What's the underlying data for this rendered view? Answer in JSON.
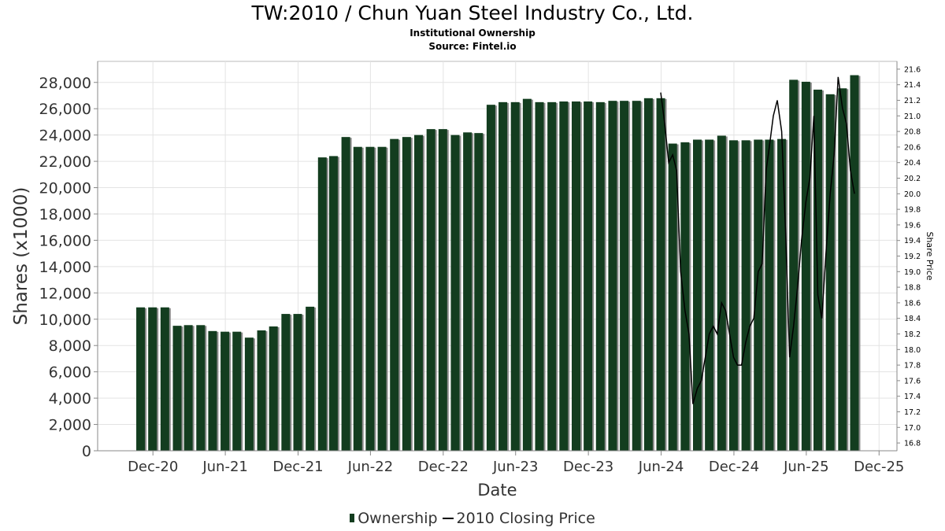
{
  "chart_data": {
    "type": "bar",
    "title": "TW:2010 / Chun Yuan Steel Industry Co., Ltd.",
    "subtitle": "Institutional Ownership",
    "source": "Source: Fintel.io",
    "xlabel": "Date",
    "ylabel": "Shares (x1000)",
    "y2label": "Share Price",
    "ylim": [
      0,
      29600
    ],
    "y2lim": [
      16.7,
      21.7
    ],
    "yticks": [
      "0",
      "2,000",
      "4,000",
      "6,000",
      "8,000",
      "10,000",
      "12,000",
      "14,000",
      "16,000",
      "18,000",
      "20,000",
      "22,000",
      "24,000",
      "26,000",
      "28,000"
    ],
    "y2ticks": [
      "16.8",
      "17.0",
      "17.2",
      "17.4",
      "17.6",
      "17.8",
      "18.0",
      "18.2",
      "18.4",
      "18.6",
      "18.8",
      "19.0",
      "19.2",
      "19.4",
      "19.6",
      "19.8",
      "20.0",
      "20.2",
      "20.4",
      "20.6",
      "20.8",
      "21.0",
      "21.2",
      "21.4",
      "21.6"
    ],
    "xticks": [
      "Dec-20",
      "Jun-21",
      "Dec-21",
      "Jun-22",
      "Dec-22",
      "Jun-23",
      "Dec-23",
      "Jun-24",
      "Dec-24",
      "Jun-25",
      "Dec-25"
    ],
    "xtick_dates": [
      "2020-12-01",
      "2021-06-01",
      "2021-12-01",
      "2022-06-01",
      "2022-12-01",
      "2023-06-01",
      "2023-12-01",
      "2024-06-01",
      "2024-12-01",
      "2025-06-01",
      "2025-12-01"
    ],
    "xrange": [
      "2020-07-15",
      "2026-01-15"
    ],
    "grid": true,
    "legend_position": "bottom",
    "series": [
      {
        "name": "Ownership",
        "kind": "bar",
        "color": "#133d1f",
        "dates": [
          "2020-10-31",
          "2020-11-30",
          "2020-12-31",
          "2021-01-31",
          "2021-02-28",
          "2021-03-31",
          "2021-04-30",
          "2021-05-31",
          "2021-06-30",
          "2021-07-31",
          "2021-08-31",
          "2021-09-30",
          "2021-10-31",
          "2021-11-30",
          "2021-12-31",
          "2022-01-31",
          "2022-02-28",
          "2022-03-31",
          "2022-04-30",
          "2022-05-31",
          "2022-06-30",
          "2022-07-31",
          "2022-08-31",
          "2022-09-30",
          "2022-10-31",
          "2022-11-30",
          "2022-12-31",
          "2023-01-31",
          "2023-02-28",
          "2023-03-31",
          "2023-04-30",
          "2023-05-31",
          "2023-06-30",
          "2023-07-31",
          "2023-08-31",
          "2023-09-30",
          "2023-10-31",
          "2023-11-30",
          "2023-12-31",
          "2024-01-31",
          "2024-02-29",
          "2024-03-31",
          "2024-04-30",
          "2024-05-31",
          "2024-06-30",
          "2024-07-31",
          "2024-08-31",
          "2024-09-30",
          "2024-10-31",
          "2024-11-30",
          "2024-12-31",
          "2025-01-31",
          "2025-02-28",
          "2025-03-31",
          "2025-04-30",
          "2025-05-31",
          "2025-06-30",
          "2025-07-31",
          "2025-08-31",
          "2025-09-30"
        ],
        "values": [
          10900,
          10900,
          10900,
          9500,
          9550,
          9550,
          9100,
          9050,
          9050,
          8600,
          9150,
          9450,
          10400,
          10400,
          10950,
          22300,
          22400,
          23850,
          23100,
          23100,
          23100,
          23700,
          23850,
          24000,
          24450,
          24450,
          24000,
          24200,
          24150,
          26300,
          26500,
          26500,
          26750,
          26500,
          26500,
          26550,
          26550,
          26550,
          26500,
          26600,
          26600,
          26600,
          26800,
          26800,
          23350,
          23450,
          23650,
          23650,
          23950,
          23600,
          23600,
          23650,
          23650,
          23700,
          28200,
          28050,
          27450,
          27100,
          27550,
          28550
        ]
      },
      {
        "name": "2010 Closing Price",
        "kind": "line",
        "color": "#000000",
        "dates": [
          "2024-05-31",
          "2024-06-10",
          "2024-06-20",
          "2024-06-30",
          "2024-07-10",
          "2024-07-20",
          "2024-07-31",
          "2024-08-10",
          "2024-08-20",
          "2024-08-31",
          "2024-09-10",
          "2024-09-20",
          "2024-09-30",
          "2024-10-10",
          "2024-10-20",
          "2024-10-31",
          "2024-11-10",
          "2024-11-20",
          "2024-11-30",
          "2024-12-10",
          "2024-12-20",
          "2024-12-31",
          "2025-01-10",
          "2025-01-20",
          "2025-01-31",
          "2025-02-10",
          "2025-02-20",
          "2025-02-28",
          "2025-03-10",
          "2025-03-20",
          "2025-03-31",
          "2025-04-10",
          "2025-04-20",
          "2025-04-30",
          "2025-05-10",
          "2025-05-20",
          "2025-05-31",
          "2025-06-10",
          "2025-06-20",
          "2025-06-30",
          "2025-07-10",
          "2025-07-20",
          "2025-07-31",
          "2025-08-10",
          "2025-08-20",
          "2025-08-31",
          "2025-09-10",
          "2025-09-20",
          "2025-09-30"
        ],
        "values": [
          21.3,
          20.9,
          20.4,
          20.5,
          20.3,
          19.0,
          18.5,
          18.2,
          17.3,
          17.5,
          17.6,
          17.9,
          18.2,
          18.3,
          18.2,
          18.6,
          18.5,
          18.2,
          17.9,
          17.8,
          17.8,
          18.1,
          18.3,
          18.4,
          19.0,
          19.1,
          20.3,
          20.6,
          21.0,
          21.2,
          20.8,
          19.5,
          17.9,
          18.3,
          18.8,
          19.4,
          19.9,
          20.2,
          21.0,
          18.7,
          18.4,
          19.2,
          20.0,
          20.5,
          21.5,
          21.1,
          20.9,
          20.3,
          20.0
        ]
      }
    ]
  }
}
